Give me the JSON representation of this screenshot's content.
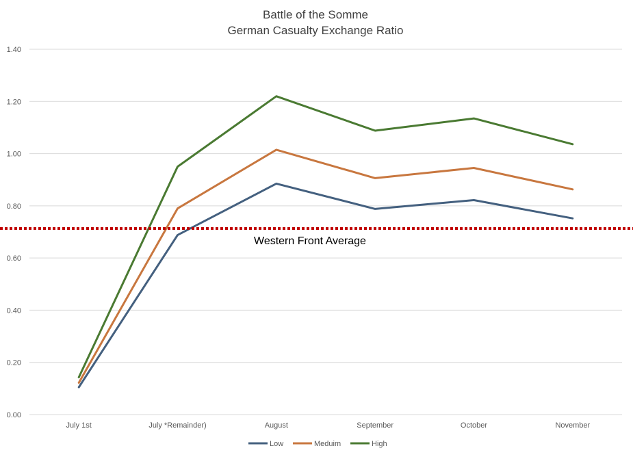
{
  "chart_data": {
    "type": "line",
    "title": "Battle of the Somme",
    "subtitle": "German Casualty Exchange Ratio",
    "categories": [
      "July 1st",
      "July *Remainder)",
      "August",
      "September",
      "October",
      "November"
    ],
    "series": [
      {
        "name": "Low",
        "color": "#44607f",
        "values": [
          0.105,
          0.688,
          0.885,
          0.788,
          0.822,
          0.752
        ]
      },
      {
        "name": "Meduim",
        "color": "#c8773f",
        "values": [
          0.122,
          0.79,
          1.015,
          0.906,
          0.945,
          0.863
        ]
      },
      {
        "name": "High",
        "color": "#4a7a32",
        "values": [
          0.143,
          0.95,
          1.22,
          1.088,
          1.135,
          1.036
        ]
      }
    ],
    "ylim": [
      0,
      1.4
    ],
    "yticks": [
      "0.00",
      "0.20",
      "0.40",
      "0.60",
      "0.80",
      "1.00",
      "1.20",
      "1.40"
    ],
    "ytick_values": [
      0,
      0.2,
      0.4,
      0.6,
      0.8,
      1.0,
      1.2,
      1.4
    ],
    "grid": true,
    "legend_position": "bottom",
    "reference_line": {
      "label": "Western Front Average",
      "value": 0.713,
      "color": "#c00000"
    }
  }
}
